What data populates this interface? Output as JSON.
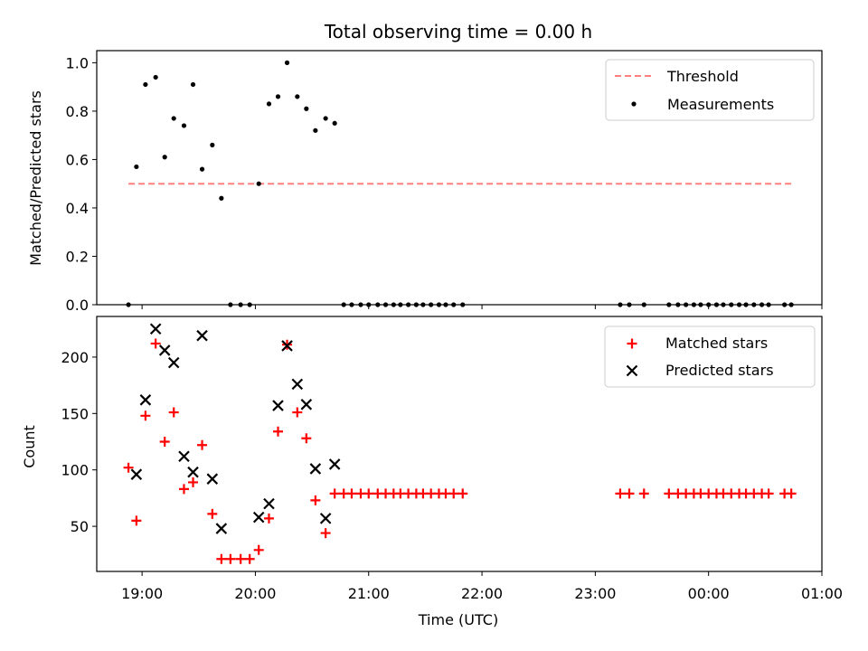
{
  "chart_data": {
    "title": "Total observing time = 0.00 h",
    "xlabel": "Time (UTC)",
    "x_ticks": [
      "19:00",
      "20:00",
      "21:00",
      "22:00",
      "23:00",
      "00:00",
      "01:00"
    ],
    "x_tick_hours": [
      19,
      20,
      21,
      22,
      23,
      24,
      25
    ],
    "xlim_hours": [
      18.6,
      25.0
    ],
    "panels": [
      {
        "type": "line+scatter",
        "ylabel": "Matched/Predicted stars",
        "ylim": [
          0,
          1.05
        ],
        "y_ticks": [
          "0.0",
          "0.2",
          "0.4",
          "0.6",
          "0.8",
          "1.0"
        ],
        "y_tick_values": [
          0,
          0.2,
          0.4,
          0.6,
          0.8,
          1.0
        ],
        "legend_position": "top-right",
        "threshold": {
          "name": "Threshold",
          "color": "#ff7f7f",
          "x_hours": [
            18.88,
            24.73
          ],
          "value": 0.5
        },
        "measurements": {
          "name": "Measurements",
          "color": "#000000",
          "x_hours": [
            18.88,
            18.95,
            19.03,
            19.12,
            19.2,
            19.28,
            19.37,
            19.45,
            19.53,
            19.62,
            19.7,
            19.78,
            19.87,
            19.95,
            20.03,
            20.12,
            20.2,
            20.28,
            20.37,
            20.45,
            20.53,
            20.62,
            20.7,
            20.78,
            20.85,
            20.93,
            21.0,
            21.08,
            21.15,
            21.22,
            21.28,
            21.35,
            21.42,
            21.48,
            21.55,
            21.62,
            21.68,
            21.75,
            21.83,
            23.22,
            23.3,
            23.43,
            23.65,
            23.73,
            23.8,
            23.87,
            23.93,
            24.0,
            24.07,
            24.13,
            24.2,
            24.27,
            24.33,
            24.4,
            24.47,
            24.53,
            24.67,
            24.73
          ],
          "values": [
            0.0,
            0.57,
            0.91,
            0.94,
            0.61,
            0.77,
            0.74,
            0.91,
            0.56,
            0.66,
            0.44,
            0.0,
            0.0,
            0.0,
            0.5,
            0.83,
            0.86,
            1.0,
            0.86,
            0.81,
            0.72,
            0.77,
            0.75,
            0.0,
            0.0,
            0.0,
            0.0,
            0.0,
            0.0,
            0.0,
            0.0,
            0.0,
            0.0,
            0.0,
            0.0,
            0.0,
            0.0,
            0.0,
            0.0,
            0.0,
            0.0,
            0.0,
            0.0,
            0.0,
            0.0,
            0.0,
            0.0,
            0.0,
            0.0,
            0.0,
            0.0,
            0.0,
            0.0,
            0.0,
            0.0,
            0.0,
            0.0,
            0.0
          ]
        }
      },
      {
        "type": "scatter",
        "ylabel": "Count",
        "ylim": [
          10,
          236
        ],
        "y_ticks": [
          "50",
          "100",
          "150",
          "200"
        ],
        "y_tick_values": [
          50,
          100,
          150,
          200
        ],
        "legend_position": "top-right",
        "matched": {
          "name": "Matched stars",
          "color": "#ff0000",
          "x_hours": [
            18.88,
            18.95,
            19.03,
            19.12,
            19.2,
            19.28,
            19.37,
            19.45,
            19.53,
            19.62,
            19.7,
            19.78,
            19.87,
            19.95,
            20.03,
            20.12,
            20.2,
            20.28,
            20.37,
            20.45,
            20.53,
            20.62,
            20.7,
            20.78,
            20.85,
            20.93,
            21.0,
            21.08,
            21.15,
            21.22,
            21.28,
            21.35,
            21.42,
            21.48,
            21.55,
            21.62,
            21.68,
            21.75,
            21.83,
            23.22,
            23.3,
            23.43,
            23.65,
            23.73,
            23.8,
            23.87,
            23.93,
            24.0,
            24.07,
            24.13,
            24.2,
            24.27,
            24.33,
            24.4,
            24.47,
            24.53,
            24.67,
            24.73
          ],
          "values": [
            102,
            55,
            148,
            212,
            125,
            151,
            83,
            89,
            122,
            61,
            21,
            21,
            21,
            21,
            29,
            57,
            134,
            211,
            151,
            128,
            73,
            44,
            79,
            79,
            79,
            79,
            79,
            79,
            79,
            79,
            79,
            79,
            79,
            79,
            79,
            79,
            79,
            79,
            79,
            79,
            79,
            79,
            79,
            79,
            79,
            79,
            79,
            79,
            79,
            79,
            79,
            79,
            79,
            79,
            79,
            79,
            79,
            79
          ]
        },
        "predicted": {
          "name": "Predicted stars",
          "color": "#000000",
          "x_hours": [
            18.95,
            19.03,
            19.12,
            19.2,
            19.28,
            19.37,
            19.45,
            19.53,
            19.62,
            19.7,
            20.03,
            20.12,
            20.2,
            20.28,
            20.37,
            20.45,
            20.53,
            20.62,
            20.7
          ],
          "values": [
            96,
            162,
            225,
            206,
            195,
            112,
            98,
            219,
            92,
            48,
            58,
            70,
            157,
            210,
            176,
            158,
            101,
            57,
            105
          ]
        }
      }
    ]
  }
}
